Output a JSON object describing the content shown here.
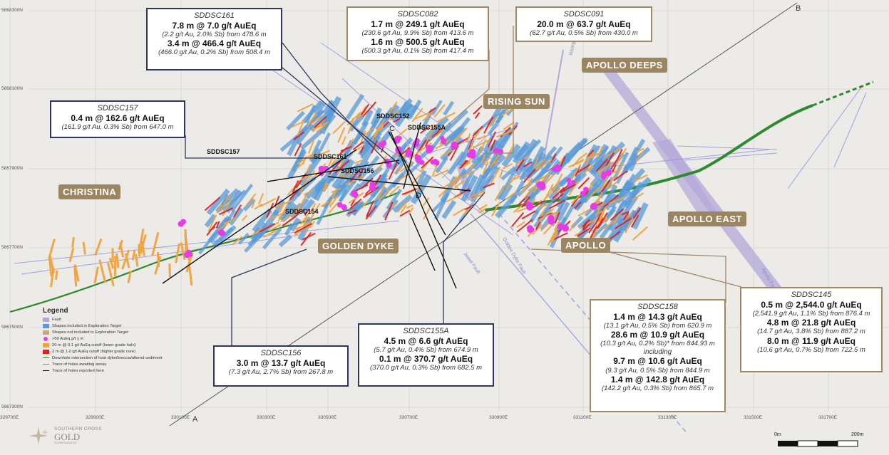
{
  "callouts": [
    {
      "id": "sddsc161",
      "hole": "SDDSC161",
      "lines": [
        {
          "t": "main",
          "v": "7.8 m @ 7.0 g/t AuEq"
        },
        {
          "t": "sub",
          "v": "(2.2 g/t Au, 2.0% Sb) from 478.6 m"
        },
        {
          "t": "main",
          "v": "3.4 m @ 466.4 g/t AuEq"
        },
        {
          "t": "sub",
          "v": "(466.0 g/t Au, 0.2% Sb) from 508.4 m"
        }
      ]
    },
    {
      "id": "sddsc082",
      "hole": "SDDSC082",
      "lines": [
        {
          "t": "main",
          "v": "1.7 m @ 249.1 g/t AuEq"
        },
        {
          "t": "sub",
          "v": "(230.6 g/t Au, 9.9% Sb) from 413.6 m"
        },
        {
          "t": "main",
          "v": "1.6 m @ 500.5 g/t AuEq"
        },
        {
          "t": "sub",
          "v": "(500.3 g/t Au, 0.1% Sb) from 417.4 m"
        }
      ]
    },
    {
      "id": "sddsc091",
      "hole": "SDDSC091",
      "lines": [
        {
          "t": "main",
          "v": "20.0 m @ 63.7 g/t AuEq"
        },
        {
          "t": "sub",
          "v": "(62.7 g/t Au, 0.5% Sb) from 430.0 m"
        }
      ]
    },
    {
      "id": "sddsc157",
      "hole": "SDDSC157",
      "lines": [
        {
          "t": "main",
          "v": "0.4 m @ 162.6 g/t AuEq"
        },
        {
          "t": "sub",
          "v": "(161.9 g/t Au, 0.3% Sb) from 647.0 m"
        }
      ]
    },
    {
      "id": "sddsc156",
      "hole": "SDDSC156",
      "lines": [
        {
          "t": "main",
          "v": "3.0 m @ 13.7 g/t AuEq"
        },
        {
          "t": "sub",
          "v": "(7.3 g/t Au, 2.7% Sb) from 267.8 m"
        }
      ]
    },
    {
      "id": "sddsc155a",
      "hole": "SDDSC155A",
      "lines": [
        {
          "t": "main",
          "v": "4.5 m @ 6.6 g/t AuEq"
        },
        {
          "t": "sub",
          "v": "(5.7 g/t Au, 0.4% Sb) from 674.9 m"
        },
        {
          "t": "main",
          "v": "0.1 m @ 370.7 g/t AuEq"
        },
        {
          "t": "sub",
          "v": "(370.0 g/t Au, 0.3% Sb) from 682.5 m"
        }
      ]
    },
    {
      "id": "sddsc158",
      "hole": "SDDSC158",
      "lines": [
        {
          "t": "main",
          "v": "1.4 m @ 14.3 g/t AuEq"
        },
        {
          "t": "sub",
          "v": "(13.1 g/t Au, 0.5% Sb) from 620.9 m"
        },
        {
          "t": "main",
          "v": "28.6 m @ 10.9 g/t AuEq"
        },
        {
          "t": "sub",
          "v": "(10.3 g/t Au, 0.2% Sb)* from 844.93 m"
        },
        {
          "t": "inc",
          "v": "including"
        },
        {
          "t": "main",
          "v": "9.7 m @ 10.6 g/t AuEq"
        },
        {
          "t": "sub",
          "v": "(9.3 g/t Au, 0.5% Sb) from 844.9 m"
        },
        {
          "t": "main",
          "v": "1.4 m @ 142.8 g/t AuEq"
        },
        {
          "t": "sub",
          "v": "(142.2 g/t Au, 0.3% Sb) from 865.7 m"
        }
      ]
    },
    {
      "id": "sddsc145",
      "hole": "SDDSC145",
      "lines": [
        {
          "t": "main",
          "v": "0.5 m @ 2,544.0 g/t AuEq"
        },
        {
          "t": "sub",
          "v": "(2,541.9 g/t Au, 1.1% Sb) from 876.4 m"
        },
        {
          "t": "main",
          "v": "4.8 m @ 21.8 g/t AuEq"
        },
        {
          "t": "sub",
          "v": "(14.7 g/t Au, 3.8% Sb) from 887.2 m"
        },
        {
          "t": "main",
          "v": "8.0 m @ 11.9 g/t AuEq"
        },
        {
          "t": "sub",
          "v": "(10.6 g/t Au, 0.7% Sb) from 722.5 m"
        }
      ]
    }
  ],
  "regions": {
    "christina": "CHRISTINA",
    "golden_dyke": "GOLDEN DYKE",
    "rising_sun": "RISING SUN",
    "apollo_deeps": "APOLLO DEEPS",
    "apollo": "APOLLO",
    "apollo_east": "APOLLO EAST"
  },
  "hole_labels": {
    "sddsc152": "SDDSC152",
    "sddsc155a": "SDDSC155A",
    "sddsc157": "SDDSC157",
    "sddsc161": "SDDSC161",
    "sddsc156": "SDDSC156",
    "sddsc154": "SDDSC154"
  },
  "section_letters": {
    "a": "A",
    "b": "B",
    "c": "C",
    "d": "D"
  },
  "fault_labels": {
    "rising_sun": "Rising Sun Fault",
    "golden_dyke": "Golden Dyke Fault",
    "jewel": "Jewel Fault",
    "apollo": "Apollo Fault"
  },
  "northings": [
    "5868300N",
    "5868100N",
    "5867900N",
    "5867700N",
    "5867500N",
    "5867300N"
  ],
  "eastings": [
    "329700E",
    "329900E",
    "330100E",
    "330300E",
    "330500E",
    "330700E",
    "330900E",
    "331100E",
    "331300E",
    "331500E",
    "331700E"
  ],
  "legend": {
    "title": "Legend",
    "items": [
      {
        "kind": "fill",
        "color": "#b3a8d8",
        "label": "Fault"
      },
      {
        "kind": "fill",
        "color": "#5a9ad8",
        "label": "Shapes included in Exploration Target"
      },
      {
        "kind": "fill",
        "color": "#c9a676",
        "label": "Shapes not included in Exploration Target"
      },
      {
        "kind": "dot",
        "color": "#e83ae8",
        "label": ">50 AuEq g/t x m"
      },
      {
        "kind": "fill",
        "color": "#f0a23c",
        "label": "20 m @ 0.1 g/t AuEq cutoff (lower grade halo)"
      },
      {
        "kind": "fill",
        "color": "#e02020",
        "label": "2 m @ 1.0 g/t AuEq cutoff (higher grade core)"
      },
      {
        "kind": "line",
        "color": "#3b7d2a",
        "label": "Downhole intersection of host dyke/breccia/altered sediment"
      },
      {
        "kind": "line",
        "color": "#7b7fe0",
        "label": "Trace of holes awaiting assay"
      },
      {
        "kind": "line",
        "color": "#111111",
        "label": "Trace of holes reported here"
      }
    ]
  },
  "logo": {
    "line1": "SOUTHERN CROSS",
    "line2": "GOLD",
    "line3": "CONSOLIDATED"
  },
  "scale": {
    "start": "0m",
    "end": "200m"
  },
  "colors": {
    "navy": "#2e3560",
    "tan_border": "#a08866",
    "region_bg": "#9c8661",
    "fault": "#b3a8d8",
    "lodes": "#5a9ad8",
    "halo": "#f0a23c",
    "core": "#e02020",
    "hot": "#e83ae8",
    "dyke": "#2f8a2f"
  }
}
